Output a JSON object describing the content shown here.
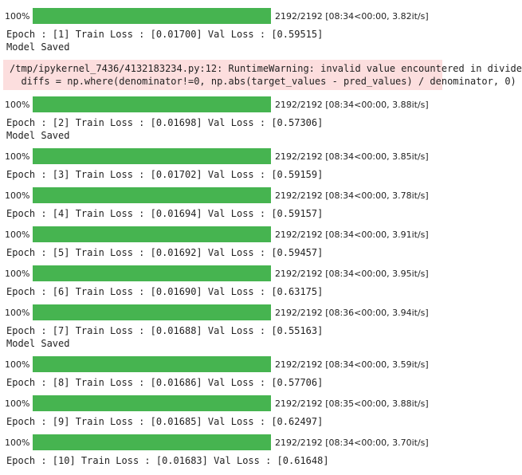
{
  "cells": [
    {
      "type": "progress",
      "percent_label": "100%",
      "fill_fraction": 1.0,
      "stats": "2192/2192 [08:34<00:00, 3.82it/s]"
    },
    {
      "type": "epoch",
      "text": "Epoch : [1] Train Loss : [0.01700] Val Loss : [0.59515]"
    },
    {
      "type": "text",
      "text": "Model Saved"
    },
    {
      "type": "warning",
      "lines": [
        "/tmp/ipykernel_7436/4132183234.py:12: RuntimeWarning: invalid value encountered in divide",
        "  diffs = np.where(denominator!=0, np.abs(target_values - pred_values) / denominator, 0)"
      ]
    },
    {
      "type": "progress",
      "percent_label": "100%",
      "fill_fraction": 1.0,
      "stats": "2192/2192 [08:34<00:00, 3.88it/s]"
    },
    {
      "type": "epoch",
      "text": "Epoch : [2] Train Loss : [0.01698] Val Loss : [0.57306]"
    },
    {
      "type": "text",
      "text": "Model Saved"
    },
    {
      "type": "progress",
      "percent_label": "100%",
      "fill_fraction": 1.0,
      "stats": "2192/2192 [08:34<00:00, 3.85it/s]"
    },
    {
      "type": "epoch",
      "text": "Epoch : [3] Train Loss : [0.01702] Val Loss : [0.59159]"
    },
    {
      "type": "progress",
      "percent_label": "100%",
      "fill_fraction": 1.0,
      "stats": "2192/2192 [08:34<00:00, 3.78it/s]"
    },
    {
      "type": "epoch",
      "text": "Epoch : [4] Train Loss : [0.01694] Val Loss : [0.59157]"
    },
    {
      "type": "progress",
      "percent_label": "100%",
      "fill_fraction": 1.0,
      "stats": "2192/2192 [08:34<00:00, 3.91it/s]"
    },
    {
      "type": "epoch",
      "text": "Epoch : [5] Train Loss : [0.01692] Val Loss : [0.59457]"
    },
    {
      "type": "progress",
      "percent_label": "100%",
      "fill_fraction": 1.0,
      "stats": "2192/2192 [08:34<00:00, 3.95it/s]"
    },
    {
      "type": "epoch",
      "text": "Epoch : [6] Train Loss : [0.01690] Val Loss : [0.63175]"
    },
    {
      "type": "progress",
      "percent_label": "100%",
      "fill_fraction": 1.0,
      "stats": "2192/2192 [08:36<00:00, 3.94it/s]"
    },
    {
      "type": "epoch",
      "text": "Epoch : [7] Train Loss : [0.01688] Val Loss : [0.55163]"
    },
    {
      "type": "text",
      "text": "Model Saved"
    },
    {
      "type": "progress",
      "percent_label": "100%",
      "fill_fraction": 1.0,
      "stats": "2192/2192 [08:34<00:00, 3.59it/s]"
    },
    {
      "type": "epoch",
      "text": "Epoch : [8] Train Loss : [0.01686] Val Loss : [0.57706]"
    },
    {
      "type": "progress",
      "percent_label": "100%",
      "fill_fraction": 1.0,
      "stats": "2192/2192 [08:35<00:00, 3.88it/s]"
    },
    {
      "type": "epoch",
      "text": "Epoch : [9] Train Loss : [0.01685] Val Loss : [0.62497]"
    },
    {
      "type": "progress",
      "percent_label": "100%",
      "fill_fraction": 1.0,
      "stats": "2192/2192 [08:34<00:00, 3.70it/s]"
    },
    {
      "type": "epoch",
      "text": "Epoch : [10] Train Loss : [0.01683] Val Loss : [0.61648]"
    }
  ],
  "colors": {
    "progress_fill": "#46b450",
    "warning_background": "#fcdede",
    "text": "#222222",
    "background": "#ffffff"
  }
}
